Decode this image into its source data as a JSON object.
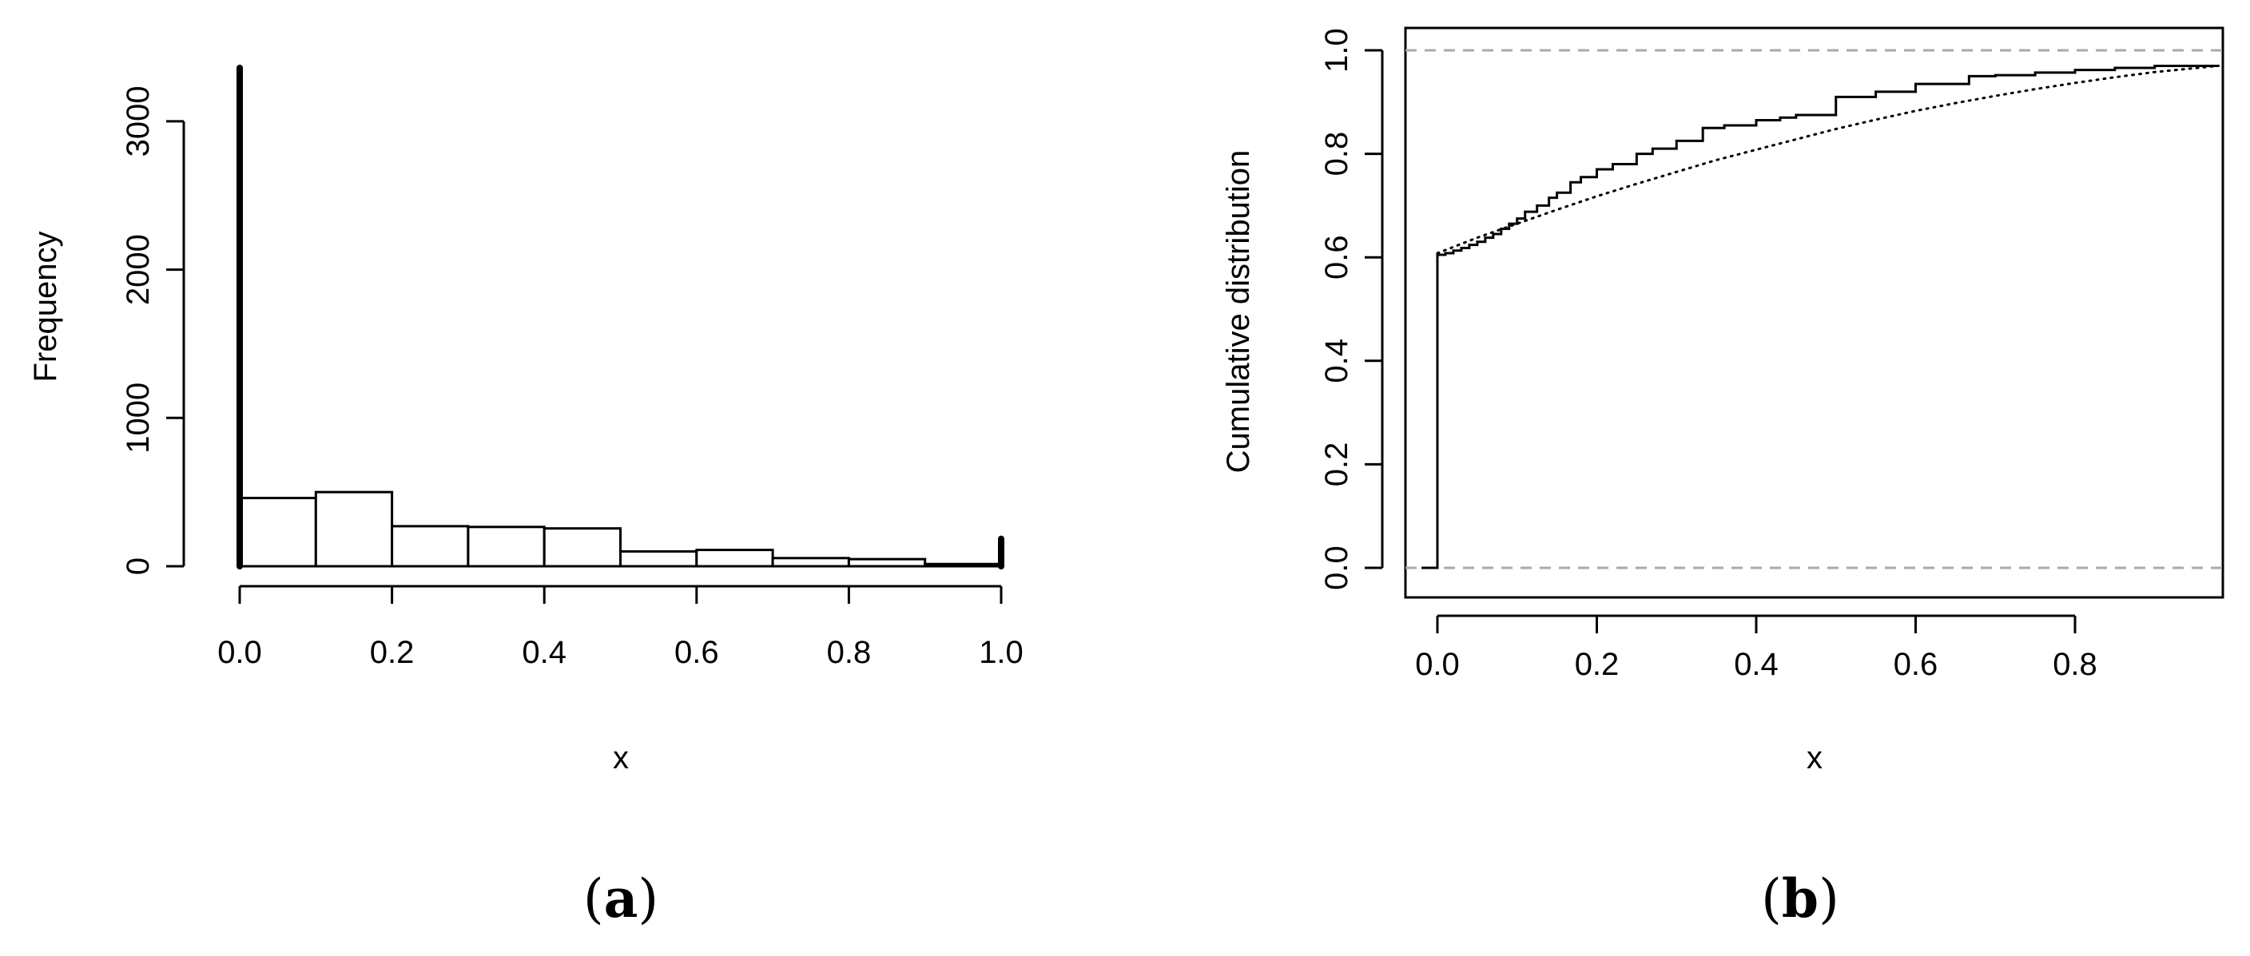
{
  "chart_data": [
    {
      "type": "bar",
      "panel_label": {
        "open": "(",
        "letter": "a",
        "close": ")"
      },
      "xlabel": "x",
      "ylabel": "Frequency",
      "xlim": [
        0,
        1
      ],
      "ylim": [
        0,
        3500
      ],
      "xticks": [
        "0.0",
        "0.2",
        "0.4",
        "0.6",
        "0.8",
        "1.0"
      ],
      "yticks": [
        "0",
        "1000",
        "2000",
        "3000"
      ],
      "bins": [
        {
          "from": 0.0,
          "to": 0.1,
          "value": 460
        },
        {
          "from": 0.1,
          "to": 0.2,
          "value": 500
        },
        {
          "from": 0.2,
          "to": 0.3,
          "value": 270
        },
        {
          "from": 0.3,
          "to": 0.4,
          "value": 265
        },
        {
          "from": 0.4,
          "to": 0.5,
          "value": 255
        },
        {
          "from": 0.5,
          "to": 0.6,
          "value": 100
        },
        {
          "from": 0.6,
          "to": 0.7,
          "value": 110
        },
        {
          "from": 0.7,
          "to": 0.8,
          "value": 55
        },
        {
          "from": 0.8,
          "to": 0.9,
          "value": 48
        },
        {
          "from": 0.9,
          "to": 1.0,
          "value": 15
        }
      ],
      "point_masses": [
        {
          "x": 0.0,
          "value": 3360
        },
        {
          "x": 1.0,
          "value": 185
        }
      ],
      "grid": false
    },
    {
      "type": "line",
      "panel_label": {
        "open": "(",
        "letter": "b",
        "close": ")"
      },
      "xlabel": "x",
      "ylabel": "Cumulative distribution",
      "xlim": [
        -0.02,
        0.98
      ],
      "ylim": [
        0,
        1
      ],
      "xticks": [
        "0.0",
        "0.2",
        "0.4",
        "0.6",
        "0.8"
      ],
      "yticks": [
        "0.0",
        "0.2",
        "0.4",
        "0.6",
        "0.8",
        "1.0"
      ],
      "reference_lines": [
        0.0,
        1.0
      ],
      "series": [
        {
          "style": "step",
          "points": [
            [
              -0.02,
              0.0
            ],
            [
              0.0,
              0.0
            ],
            [
              0.0,
              0.605
            ],
            [
              0.01,
              0.608
            ],
            [
              0.02,
              0.613
            ],
            [
              0.03,
              0.618
            ],
            [
              0.04,
              0.624
            ],
            [
              0.05,
              0.63
            ],
            [
              0.06,
              0.638
            ],
            [
              0.07,
              0.645
            ],
            [
              0.08,
              0.655
            ],
            [
              0.09,
              0.665
            ],
            [
              0.1,
              0.675
            ],
            [
              0.11,
              0.688
            ],
            [
              0.125,
              0.7
            ],
            [
              0.14,
              0.715
            ],
            [
              0.15,
              0.725
            ],
            [
              0.167,
              0.745
            ],
            [
              0.18,
              0.755
            ],
            [
              0.2,
              0.77
            ],
            [
              0.22,
              0.78
            ],
            [
              0.25,
              0.8
            ],
            [
              0.27,
              0.81
            ],
            [
              0.3,
              0.825
            ],
            [
              0.333,
              0.85
            ],
            [
              0.36,
              0.855
            ],
            [
              0.4,
              0.865
            ],
            [
              0.43,
              0.87
            ],
            [
              0.45,
              0.875
            ],
            [
              0.5,
              0.91
            ],
            [
              0.55,
              0.92
            ],
            [
              0.6,
              0.935
            ],
            [
              0.667,
              0.95
            ],
            [
              0.7,
              0.952
            ],
            [
              0.75,
              0.957
            ],
            [
              0.8,
              0.962
            ],
            [
              0.85,
              0.966
            ],
            [
              0.9,
              0.97
            ],
            [
              0.98,
              0.97
            ]
          ]
        },
        {
          "style": "dotted",
          "points": [
            [
              0.0,
              0.608
            ],
            [
              0.05,
              0.638
            ],
            [
              0.1,
              0.665
            ],
            [
              0.15,
              0.692
            ],
            [
              0.2,
              0.718
            ],
            [
              0.25,
              0.742
            ],
            [
              0.3,
              0.765
            ],
            [
              0.35,
              0.788
            ],
            [
              0.4,
              0.808
            ],
            [
              0.45,
              0.828
            ],
            [
              0.5,
              0.848
            ],
            [
              0.55,
              0.866
            ],
            [
              0.6,
              0.883
            ],
            [
              0.65,
              0.898
            ],
            [
              0.7,
              0.912
            ],
            [
              0.75,
              0.925
            ],
            [
              0.8,
              0.937
            ],
            [
              0.85,
              0.948
            ],
            [
              0.9,
              0.958
            ],
            [
              0.98,
              0.97
            ]
          ]
        }
      ],
      "grid": false
    }
  ]
}
